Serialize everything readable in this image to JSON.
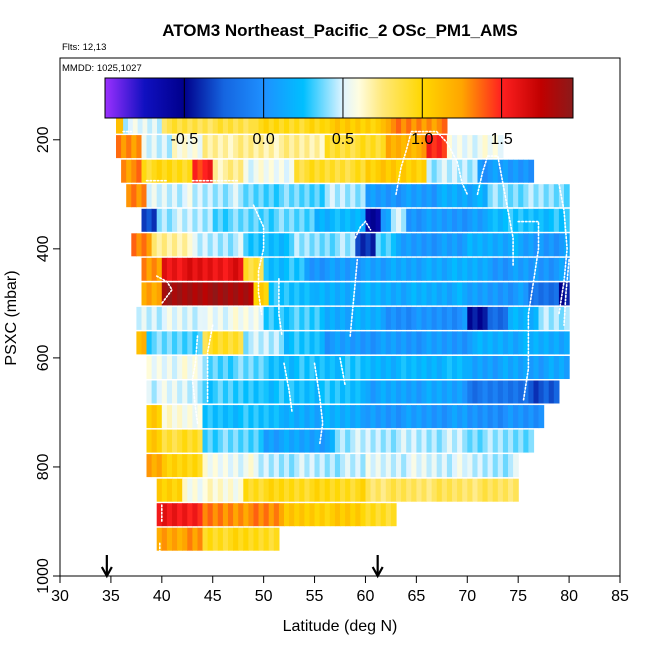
{
  "chart_data": {
    "type": "heatmap",
    "title": "ATOM3 Northeast_Pacific_2 OSc_PM1_AMS",
    "info_lines": [
      "Flts: 12,13",
      "MMDD: 1025,1027"
    ],
    "xlabel": "Latitude (deg N)",
    "ylabel": "PSXC (mbar)",
    "xlim": [
      30,
      85
    ],
    "ylim": [
      1000,
      50
    ],
    "y_reversed": true,
    "x_ticks": [
      "30",
      "35",
      "40",
      "45",
      "50",
      "55",
      "60",
      "65",
      "70",
      "75",
      "80",
      "85"
    ],
    "y_ticks": [
      "200",
      "400",
      "600",
      "800",
      "1000"
    ],
    "colorbar": {
      "range": [
        -1.0,
        1.95
      ],
      "ticks": [
        "-0.5",
        "0.0",
        "0.5",
        "1.0",
        "1.5"
      ],
      "tick_values": [
        -0.5,
        0.0,
        0.5,
        1.0,
        1.5
      ],
      "stops": [
        {
          "v": -1.0,
          "c": "#9b30ff"
        },
        {
          "v": -0.75,
          "c": "#1010c0"
        },
        {
          "v": -0.5,
          "c": "#00008b"
        },
        {
          "v": -0.25,
          "c": "#1565e0"
        },
        {
          "v": 0.0,
          "c": "#1e90ff"
        },
        {
          "v": 0.25,
          "c": "#00bfff"
        },
        {
          "v": 0.5,
          "c": "#e0f4ff"
        },
        {
          "v": 0.6,
          "c": "#fffde0"
        },
        {
          "v": 0.75,
          "c": "#ffe878"
        },
        {
          "v": 1.0,
          "c": "#ffd700"
        },
        {
          "v": 1.25,
          "c": "#ffa500"
        },
        {
          "v": 1.5,
          "c": "#ff2020"
        },
        {
          "v": 1.75,
          "c": "#c00000"
        },
        {
          "v": 1.95,
          "c": "#8b1a1a"
        }
      ]
    },
    "arrows_at_latitude": [
      34.6,
      61.2
    ],
    "levels": [
      {
        "p": 185,
        "segments": [
          [
            35.5,
            36.2,
            1.2
          ],
          [
            36.2,
            40,
            0.5
          ],
          [
            40,
            49,
            0.85
          ],
          [
            49,
            56,
            0.95
          ],
          [
            56,
            62,
            1.05
          ],
          [
            62,
            68,
            1.3
          ]
        ]
      },
      {
        "p": 230,
        "segments": [
          [
            35.5,
            38,
            1.3
          ],
          [
            38,
            41,
            0.5
          ],
          [
            41,
            44,
            0.6
          ],
          [
            44,
            56,
            0.7
          ],
          [
            56,
            62,
            0.9
          ],
          [
            62,
            66,
            1.2
          ],
          [
            66,
            68,
            1.5
          ],
          [
            68,
            73.5,
            0.55
          ]
        ]
      },
      {
        "p": 275,
        "segments": [
          [
            36,
            38,
            1.3
          ],
          [
            38,
            43,
            0.95
          ],
          [
            43,
            45,
            1.5
          ],
          [
            45,
            48,
            0.7
          ],
          [
            48,
            53,
            0.55
          ],
          [
            53,
            60,
            0.9
          ],
          [
            60,
            66,
            1.05
          ],
          [
            66,
            71,
            0.45
          ],
          [
            71,
            76.5,
            0.05
          ]
        ]
      },
      {
        "p": 320,
        "segments": [
          [
            36.5,
            38.5,
            1.3
          ],
          [
            38.5,
            43,
            0.5
          ],
          [
            43,
            48,
            0.45
          ],
          [
            48,
            56,
            0.35
          ],
          [
            56,
            60,
            0.45
          ],
          [
            60,
            67,
            0.05
          ],
          [
            67,
            72,
            0.15
          ],
          [
            72,
            80,
            0.4
          ]
        ]
      },
      {
        "p": 365,
        "segments": [
          [
            38,
            39.5,
            -0.3
          ],
          [
            39.5,
            45,
            0.45
          ],
          [
            45,
            55,
            0.35
          ],
          [
            55,
            60,
            0.2
          ],
          [
            60,
            61.5,
            -0.55
          ],
          [
            61.5,
            62.5,
            0.1
          ],
          [
            62.5,
            64,
            0.5
          ],
          [
            64,
            72,
            0.05
          ],
          [
            72,
            80,
            0.25
          ]
        ]
      },
      {
        "p": 410,
        "segments": [
          [
            37,
            39,
            1.3
          ],
          [
            39,
            43,
            0.7
          ],
          [
            43,
            48,
            0.45
          ],
          [
            48,
            53,
            0.25
          ],
          [
            53,
            59,
            0.4
          ],
          [
            59,
            61,
            -0.4
          ],
          [
            61,
            63,
            0.3
          ],
          [
            63,
            70,
            0.05
          ],
          [
            70,
            75,
            0.15
          ],
          [
            75,
            80,
            0.05
          ]
        ]
      },
      {
        "p": 455,
        "segments": [
          [
            38,
            40,
            1.3
          ],
          [
            40,
            48,
            1.6
          ],
          [
            48,
            50,
            0.9
          ],
          [
            50,
            54,
            0.25
          ],
          [
            54,
            60,
            0.05
          ],
          [
            60,
            66,
            0.1
          ],
          [
            66,
            72,
            0.15
          ],
          [
            72,
            80,
            0.05
          ]
        ]
      },
      {
        "p": 500,
        "segments": [
          [
            38,
            40,
            1.2
          ],
          [
            40,
            49,
            1.85
          ],
          [
            49,
            50.5,
            1.0
          ],
          [
            50.5,
            55,
            0.25
          ],
          [
            55,
            70,
            0.15
          ],
          [
            70,
            76,
            0.05
          ],
          [
            76,
            79,
            -0.2
          ],
          [
            79,
            80,
            -0.5
          ]
        ]
      },
      {
        "p": 545,
        "segments": [
          [
            37.5,
            44,
            0.5
          ],
          [
            44,
            50,
            0.55
          ],
          [
            50,
            56,
            0.3
          ],
          [
            56,
            62,
            0.15
          ],
          [
            62,
            70,
            0.0
          ],
          [
            70,
            72,
            -0.45
          ],
          [
            72,
            74,
            -0.2
          ],
          [
            74,
            77,
            0.2
          ],
          [
            77,
            80,
            0.45
          ]
        ]
      },
      {
        "p": 590,
        "segments": [
          [
            37.5,
            38.5,
            1.2
          ],
          [
            38.5,
            44,
            0.35
          ],
          [
            44,
            48,
            0.9
          ],
          [
            48,
            52,
            0.45
          ],
          [
            52,
            56,
            0.25
          ],
          [
            56,
            70,
            0.05
          ],
          [
            70,
            80,
            0.15
          ]
        ]
      },
      {
        "p": 635,
        "segments": [
          [
            38.5,
            44,
            0.55
          ],
          [
            44,
            50,
            0.35
          ],
          [
            50,
            60,
            0.25
          ],
          [
            60,
            70,
            0.2
          ],
          [
            70,
            80,
            0.1
          ]
        ]
      },
      {
        "p": 680,
        "segments": [
          [
            38.5,
            44,
            0.5
          ],
          [
            44,
            50,
            0.3
          ],
          [
            50,
            60,
            0.25
          ],
          [
            60,
            70,
            0.1
          ],
          [
            70,
            76,
            -0.15
          ],
          [
            76,
            79,
            -0.3
          ]
        ]
      },
      {
        "p": 725,
        "segments": [
          [
            38.5,
            40,
            1.05
          ],
          [
            40,
            44,
            0.6
          ],
          [
            44,
            52,
            0.25
          ],
          [
            52,
            60,
            0.15
          ],
          [
            60,
            70,
            0.05
          ],
          [
            70,
            77.5,
            0.0
          ]
        ]
      },
      {
        "p": 770,
        "segments": [
          [
            38.5,
            40,
            1.1
          ],
          [
            40,
            44,
            0.9
          ],
          [
            44,
            50,
            0.35
          ],
          [
            50,
            57,
            0.1
          ],
          [
            57,
            70,
            0.45
          ],
          [
            70,
            76.5,
            0.4
          ]
        ]
      },
      {
        "p": 815,
        "segments": [
          [
            38.5,
            40,
            1.2
          ],
          [
            40,
            44,
            1.0
          ],
          [
            44,
            49,
            0.55
          ],
          [
            49,
            60,
            0.45
          ],
          [
            60,
            70,
            0.5
          ],
          [
            70,
            75,
            0.45
          ]
        ]
      },
      {
        "p": 860,
        "segments": [
          [
            39.5,
            42,
            1.05
          ],
          [
            42,
            48,
            0.6
          ],
          [
            48,
            60,
            0.95
          ],
          [
            60,
            75,
            0.8
          ]
        ]
      },
      {
        "p": 905,
        "segments": [
          [
            39.5,
            44,
            1.55
          ],
          [
            44,
            52,
            1.3
          ],
          [
            52,
            60,
            1.05
          ],
          [
            60,
            63,
            0.9
          ]
        ]
      },
      {
        "p": 950,
        "segments": [
          [
            39.5,
            44,
            1.25
          ],
          [
            44,
            51.5,
            0.95
          ]
        ]
      }
    ]
  }
}
